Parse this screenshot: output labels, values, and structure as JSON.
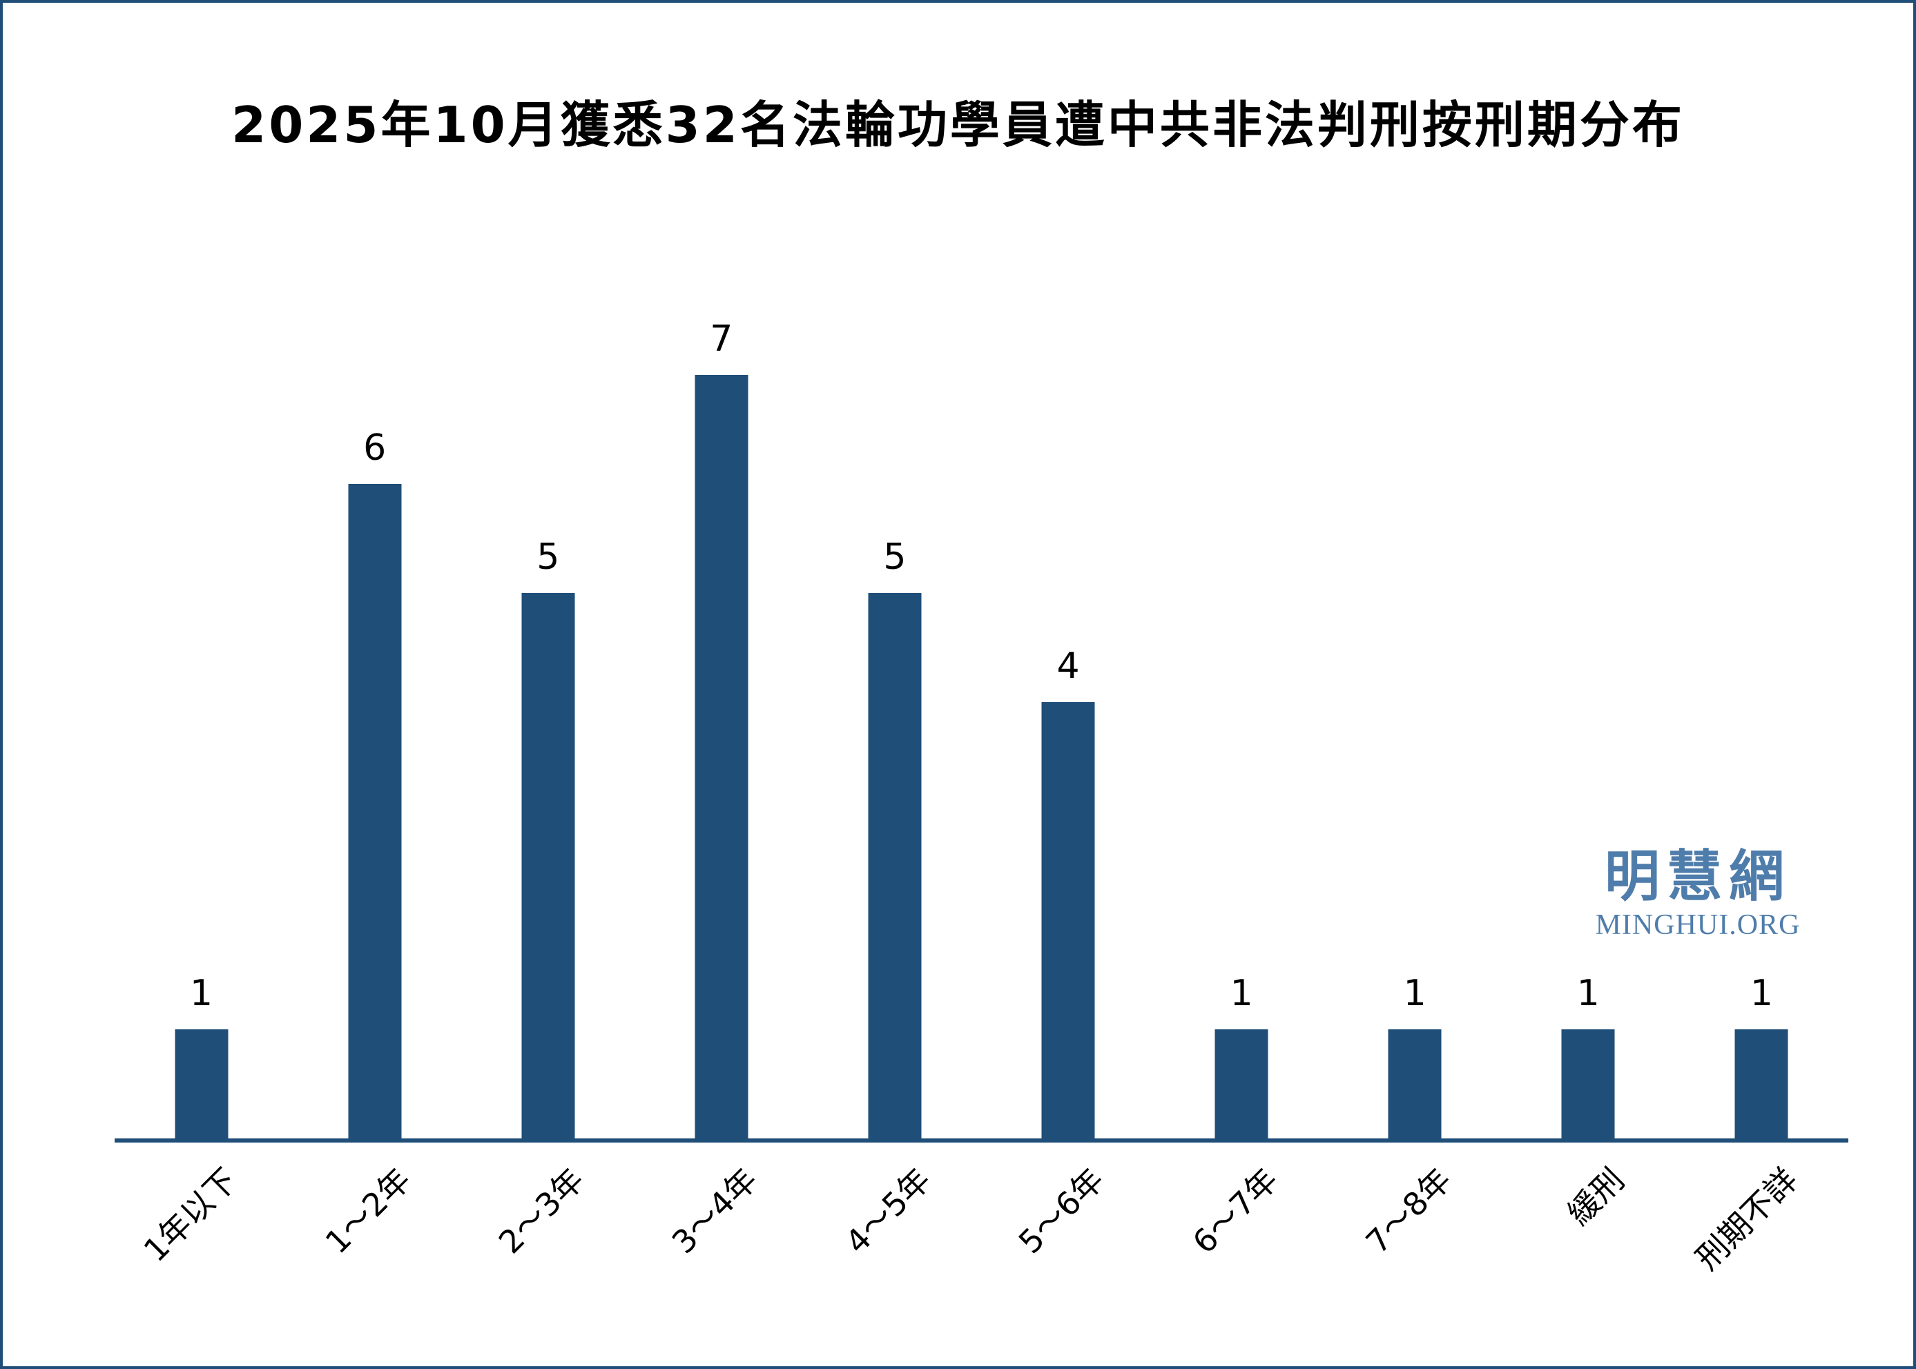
{
  "page": {
    "title": "2025年10月獲悉32名法輪功學員遭中共非法判刑按刑期分布",
    "background": "#ffffff",
    "border_color": "#1f4e79"
  },
  "watermark": {
    "cjk": "明慧網",
    "latin": "MINGHUI.ORG",
    "color": "#4f7dab"
  },
  "chart_data": {
    "type": "bar",
    "title": "2025年10月獲悉32名法輪功學員遭中共非法判刑按刑期分布",
    "categories": [
      "1年以下",
      "1～2年",
      "2～3年",
      "3～4年",
      "4～5年",
      "5～6年",
      "6～7年",
      "7～8年",
      "緩刑",
      "刑期不詳"
    ],
    "values": [
      1,
      6,
      5,
      7,
      5,
      4,
      1,
      1,
      1,
      1
    ],
    "bar_color": "#1f4e79",
    "axis_color": "#1f4e79",
    "value_label_color": "#000000",
    "xlabel": "",
    "ylabel": "",
    "ylim": [
      0,
      7.7
    ],
    "grid": false,
    "legend_position": "none",
    "value_labels_shown": true,
    "tick_label_rotation_deg": 45
  }
}
